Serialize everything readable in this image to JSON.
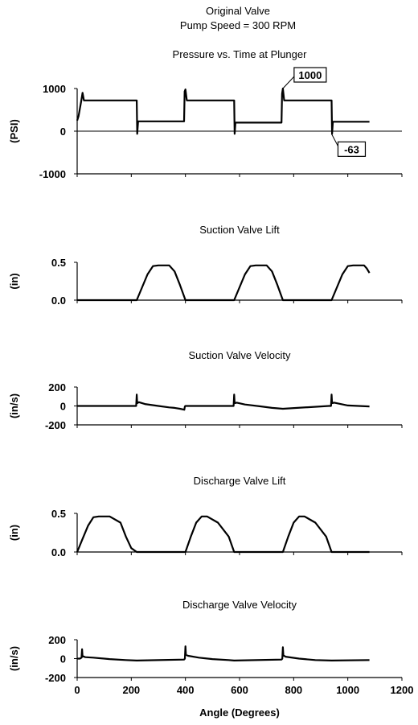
{
  "figure": {
    "title_line1": "Original Valve",
    "title_line2": "Pump Speed = 300 RPM",
    "xlabel": "Angle (Degrees)",
    "xticks": [
      "0",
      "200",
      "400",
      "600",
      "800",
      "1000",
      "1200"
    ]
  },
  "chart_data": [
    {
      "type": "line",
      "title": "Pressure vs. Time at Plunger",
      "ylabel": "(PSI)",
      "xlim": [
        0,
        1200
      ],
      "ylim": [
        -1000,
        1000
      ],
      "yticks": [
        "1000",
        "0",
        "-1000"
      ],
      "zero_line": true,
      "annotations": [
        {
          "text": "1000",
          "x": 760,
          "y": 1000
        },
        {
          "text": "-63",
          "x": 940,
          "y": -63
        }
      ],
      "series": [
        {
          "x": [
            0,
            5,
            15,
            20,
            25,
            30,
            220,
            222,
            225,
            395,
            397,
            400,
            405,
            580,
            582,
            585,
            755,
            757,
            760,
            765,
            940,
            942,
            945,
            1080
          ],
          "y": [
            250,
            350,
            700,
            900,
            720,
            720,
            720,
            -63,
            230,
            230,
            930,
            980,
            720,
            720,
            -63,
            200,
            200,
            880,
            1000,
            720,
            720,
            -63,
            220,
            220
          ]
        }
      ]
    },
    {
      "type": "line",
      "title": "Suction Valve Lift",
      "ylabel": "(in)",
      "xlim": [
        0,
        1200
      ],
      "ylim": [
        0,
        0.5
      ],
      "yticks": [
        "0.5",
        "0.0"
      ],
      "series": [
        {
          "x": [
            0,
            220,
            240,
            260,
            280,
            300,
            340,
            360,
            380,
            400,
            580,
            600,
            620,
            640,
            660,
            700,
            720,
            740,
            760,
            940,
            960,
            980,
            1000,
            1020,
            1060,
            1070,
            1080
          ],
          "y": [
            0,
            0,
            0.17,
            0.34,
            0.45,
            0.46,
            0.46,
            0.38,
            0.2,
            0,
            0,
            0.17,
            0.34,
            0.45,
            0.46,
            0.46,
            0.38,
            0.2,
            0,
            0,
            0.17,
            0.34,
            0.45,
            0.46,
            0.46,
            0.42,
            0.36
          ]
        }
      ]
    },
    {
      "type": "line",
      "title": "Suction Valve Velocity",
      "ylabel": "(in/s)",
      "xlim": [
        0,
        1200
      ],
      "ylim": [
        -200,
        200
      ],
      "yticks": [
        "200",
        "0",
        "-200"
      ],
      "series": [
        {
          "x": [
            0,
            210,
            218,
            220,
            222,
            228,
            250,
            300,
            340,
            360,
            380,
            396,
            398,
            400,
            575,
            578,
            580,
            582,
            590,
            620,
            680,
            720,
            760,
            930,
            938,
            940,
            942,
            950,
            1000,
            1080
          ],
          "y": [
            0,
            0,
            0,
            120,
            30,
            40,
            20,
            0,
            -15,
            -20,
            -30,
            -40,
            -5,
            0,
            0,
            0,
            120,
            30,
            35,
            15,
            -5,
            -20,
            -30,
            0,
            0,
            120,
            30,
            35,
            5,
            -5
          ]
        }
      ]
    },
    {
      "type": "line",
      "title": "Discharge Valve Lift",
      "ylabel": "(in)",
      "xlim": [
        0,
        1200
      ],
      "ylim": [
        0,
        0.5
      ],
      "yticks": [
        "0.5",
        "0.0"
      ],
      "series": [
        {
          "x": [
            0,
            20,
            40,
            60,
            80,
            120,
            160,
            180,
            200,
            220,
            400,
            420,
            440,
            460,
            480,
            520,
            560,
            580,
            760,
            780,
            800,
            820,
            840,
            880,
            920,
            940,
            1080
          ],
          "y": [
            0,
            0.17,
            0.34,
            0.45,
            0.46,
            0.46,
            0.38,
            0.2,
            0.05,
            0,
            0,
            0.2,
            0.38,
            0.46,
            0.46,
            0.38,
            0.2,
            0,
            0,
            0.2,
            0.38,
            0.46,
            0.46,
            0.38,
            0.2,
            0,
            0
          ]
        }
      ]
    },
    {
      "type": "line",
      "title": "Discharge Valve Velocity",
      "ylabel": "(in/s)",
      "xlim": [
        0,
        1200
      ],
      "ylim": [
        -200,
        200
      ],
      "yticks": [
        "200",
        "0",
        "-200"
      ],
      "series": [
        {
          "x": [
            0,
            10,
            16,
            18,
            20,
            22,
            30,
            60,
            120,
            180,
            220,
            395,
            398,
            400,
            402,
            410,
            450,
            500,
            560,
            580,
            755,
            758,
            760,
            762,
            770,
            820,
            880,
            940,
            1080
          ],
          "y": [
            0,
            0,
            10,
            100,
            20,
            25,
            15,
            10,
            -5,
            -15,
            -20,
            -10,
            0,
            130,
            40,
            30,
            10,
            -5,
            -15,
            -20,
            -10,
            0,
            120,
            35,
            20,
            0,
            -15,
            -20,
            -15
          ]
        }
      ]
    }
  ]
}
